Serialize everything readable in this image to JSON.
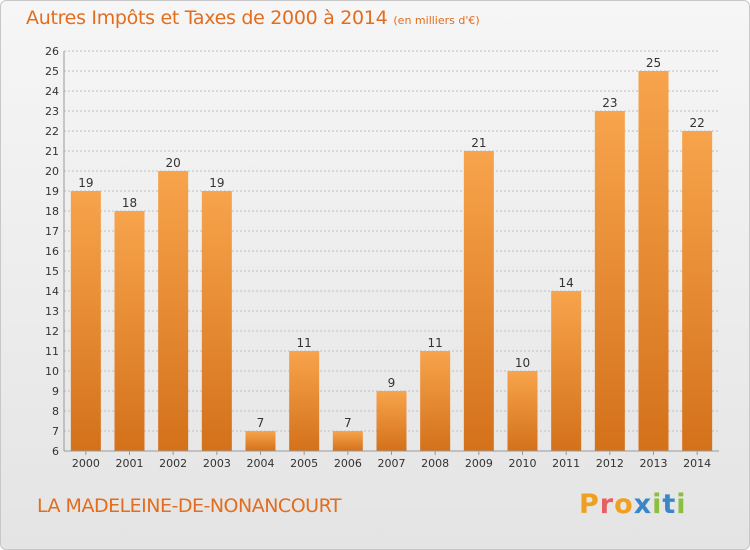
{
  "header": {
    "title": "Autres Impôts et Taxes de 2000 à 2014",
    "subtitle": "(en milliers d'€)"
  },
  "footer": {
    "city": "LA MADELEINE-DE-NONANCOURT",
    "logo": [
      "P",
      "r",
      "o",
      "x",
      "i",
      "t",
      "i"
    ]
  },
  "colors": {
    "bar_light": "#f7a44c",
    "bar_dark": "#d4711b",
    "title": "#e36d1d",
    "grid": "#bfbfbf",
    "logo": [
      "#f0a020",
      "#e85f5f",
      "#f0a020",
      "#3a87c8",
      "#8cbf3f",
      "#3a87c8",
      "#8cbf3f"
    ]
  },
  "chart_data": {
    "type": "bar",
    "title": "Autres Impôts et Taxes de 2000 à 2014",
    "subtitle": "(en milliers d'€)",
    "xlabel": "",
    "ylabel": "",
    "categories": [
      "2000",
      "2001",
      "2002",
      "2003",
      "2004",
      "2005",
      "2006",
      "2007",
      "2008",
      "2009",
      "2010",
      "2011",
      "2012",
      "2013",
      "2014"
    ],
    "values": [
      19,
      18,
      20,
      19,
      7,
      11,
      7,
      9,
      11,
      21,
      10,
      14,
      23,
      25,
      22
    ],
    "ylim": [
      6,
      26
    ],
    "yticks": [
      6,
      7,
      8,
      9,
      10,
      11,
      12,
      13,
      14,
      15,
      16,
      17,
      18,
      19,
      20,
      21,
      22,
      23,
      24,
      25,
      26
    ],
    "grid": true
  }
}
